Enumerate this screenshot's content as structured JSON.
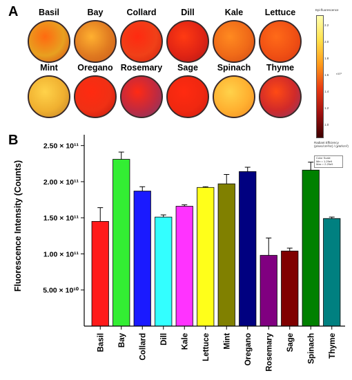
{
  "panel_a": {
    "letter": "A",
    "dishes": [
      {
        "name": "Basil",
        "colors": [
          "#ff6a10",
          "#e8a020",
          "#d64a18"
        ]
      },
      {
        "name": "Bay",
        "colors": [
          "#ffb030",
          "#e07a20",
          "#c95a1a"
        ]
      },
      {
        "name": "Collard",
        "colors": [
          "#ff2a10",
          "#f04018",
          "#d02010"
        ]
      },
      {
        "name": "Dill",
        "colors": [
          "#ff3a12",
          "#e02414",
          "#b01818"
        ]
      },
      {
        "name": "Kale",
        "colors": [
          "#ff8a20",
          "#f06a18",
          "#d04a14"
        ]
      },
      {
        "name": "Lettuce",
        "colors": [
          "#ff6a18",
          "#f05014",
          "#d83a12"
        ]
      },
      {
        "name": "Mint",
        "colors": [
          "#ffd24a",
          "#f0b030",
          "#c08028"
        ]
      },
      {
        "name": "Oregano",
        "colors": [
          "#ff2a10",
          "#f03014",
          "#c01a10"
        ]
      },
      {
        "name": "Rosemary",
        "colors": [
          "#ff2a14",
          "#c02a40",
          "#7a3a6a"
        ]
      },
      {
        "name": "Sage",
        "colors": [
          "#ff2a10",
          "#f02810",
          "#d01a10"
        ]
      },
      {
        "name": "Spinach",
        "colors": [
          "#ffd24a",
          "#ffb030",
          "#f08a20"
        ]
      },
      {
        "name": "Thyme",
        "colors": [
          "#ff4a14",
          "#d02a2a",
          "#8a3a6a"
        ]
      }
    ],
    "colorbar": {
      "title": "Epi-fluorescence",
      "ticks": [
        "2.2",
        "2.0",
        "1.8",
        "1.6",
        "1.4",
        "1.2",
        "1.0"
      ],
      "unit": "x10⁹",
      "efficiency_label": "Radiant Efficiency",
      "efficiency_units": "(p/sec/cm²/sr) / (μW/cm²)",
      "scale_title": "Color Scale",
      "scale_min": "Min = 1.29e9",
      "scale_max": "Max = 2.29e9"
    }
  },
  "chart_data": {
    "type": "bar",
    "panel_letter": "B",
    "ylabel": "Fluorescence Intensity (Counts)",
    "ylim": [
      0,
      265000000000.0
    ],
    "yticks": [
      50000000000.0,
      100000000000.0,
      150000000000.0,
      200000000000.0,
      250000000000.0
    ],
    "ytick_labels": [
      "5.00 × 10¹⁰",
      "1.00 × 10¹¹",
      "1.50 × 10¹¹",
      "2.00 × 10¹¹",
      "2.50 × 10¹¹"
    ],
    "categories": [
      "Basil",
      "Bay",
      "Collard",
      "Dill",
      "Kale",
      "Lettuce",
      "Mint",
      "Oregano",
      "Rosemary",
      "Sage",
      "Spinach",
      "Thyme"
    ],
    "values": [
      145000000000.0,
      231000000000.0,
      187000000000.0,
      151000000000.0,
      166000000000.0,
      192000000000.0,
      197000000000.0,
      214000000000.0,
      98000000000.0,
      104000000000.0,
      216000000000.0,
      149000000000.0
    ],
    "errors": [
      19000000000.0,
      10000000000.0,
      6000000000.0,
      3000000000.0,
      2000000000.0,
      1000000000.0,
      13000000000.0,
      6000000000.0,
      24000000000.0,
      4000000000.0,
      11000000000.0,
      2000000000.0
    ],
    "colors": [
      "#ff1a1a",
      "#33ee33",
      "#1a1aff",
      "#33ffff",
      "#ff33ff",
      "#ffff1a",
      "#808000",
      "#000080",
      "#800080",
      "#800000",
      "#008000",
      "#008080"
    ]
  }
}
